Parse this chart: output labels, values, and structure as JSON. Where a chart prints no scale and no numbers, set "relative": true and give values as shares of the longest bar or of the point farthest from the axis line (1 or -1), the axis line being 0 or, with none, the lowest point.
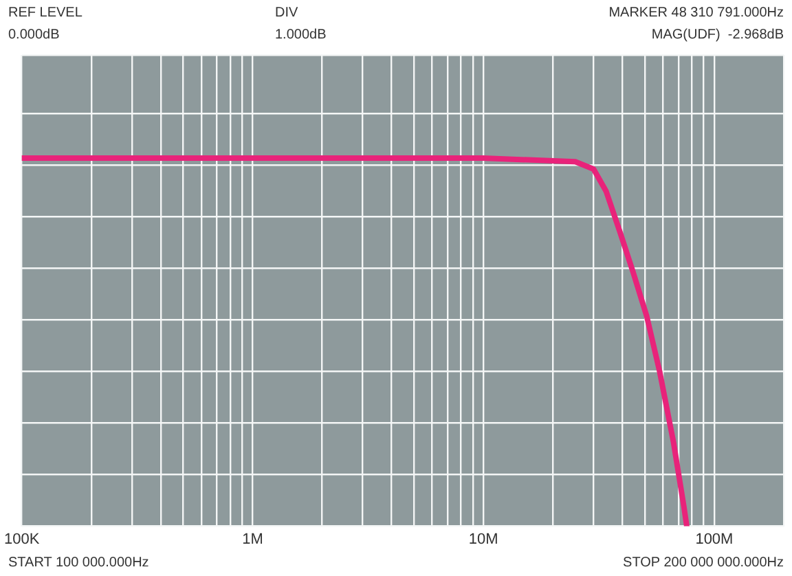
{
  "chart_data": {
    "type": "line",
    "relative": true,
    "tick_labels": "x",
    "grid": true,
    "legend": false,
    "marker": "none",
    "line_style": "solid",
    "annotations": [
      "REF LEVEL",
      "0.000dB",
      "DIV",
      "1.000dB",
      "MARKER 48 310 791.000Hz",
      "MAG(UDF)  -2.968dB",
      "START 100 000.000Hz",
      "STOP 200 000 000.000Hz"
    ],
    "log": "x",
    "xlim": [
      100000,
      200000000
    ],
    "xticks": [
      {
        "value": 100000,
        "label": "100K"
      },
      {
        "value": 200000,
        "label": null
      },
      {
        "value": 300000,
        "label": null
      },
      {
        "value": 400000,
        "label": null
      },
      {
        "value": 500000,
        "label": null
      },
      {
        "value": 600000,
        "label": null
      },
      {
        "value": 700000,
        "label": null
      },
      {
        "value": 800000,
        "label": null
      },
      {
        "value": 900000,
        "label": null
      },
      {
        "value": 1000000,
        "label": "1M"
      },
      {
        "value": 2000000,
        "label": null
      },
      {
        "value": 3000000,
        "label": null
      },
      {
        "value": 4000000,
        "label": null
      },
      {
        "value": 5000000,
        "label": null
      },
      {
        "value": 6000000,
        "label": null
      },
      {
        "value": 7000000,
        "label": null
      },
      {
        "value": 8000000,
        "label": null
      },
      {
        "value": 9000000,
        "label": null
      },
      {
        "value": 10000000,
        "label": "10M"
      },
      {
        "value": 20000000,
        "label": null
      },
      {
        "value": 30000000,
        "label": null
      },
      {
        "value": 40000000,
        "label": null
      },
      {
        "value": 50000000,
        "label": null
      },
      {
        "value": 60000000,
        "label": null
      },
      {
        "value": 70000000,
        "label": null
      },
      {
        "value": 80000000,
        "label": null
      },
      {
        "value": 90000000,
        "label": null
      },
      {
        "value": 100000000,
        "label": "100M"
      },
      {
        "value": 200000000,
        "label": null
      }
    ],
    "series": [
      {
        "color": "#e8237a",
        "x": [
          100000,
          1000000,
          10000000,
          25000000,
          30000000,
          34000000,
          39000000,
          44500000,
          51000000,
          58000000,
          66500000,
          74000000,
          76000000
        ],
        "values": [
          1,
          1,
          1,
          0.99,
          0.97,
          0.91,
          0.8,
          0.69,
          0.57,
          0.42,
          0.23,
          0.05,
          0
        ]
      }
    ]
  }
}
